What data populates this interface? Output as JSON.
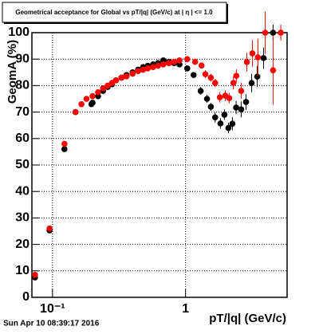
{
  "chart_data": {
    "type": "scatter",
    "title": "Geometrical acceptance for Global vs pT/|q| (GeV/c) at | η | <= 1.0",
    "x_label": "pT/|q| (GeV/c)",
    "y_label": "GeomA (%)",
    "footer": "Sun Apr 10 08:39:17 2016",
    "xlim": [
      0.07,
      5.8
    ],
    "ylim": [
      0,
      100
    ],
    "log_x": true,
    "grid": true,
    "xticks": [
      {
        "value": 0.1,
        "label": "10⁻¹"
      },
      1
    ],
    "yticks": [
      0,
      10,
      20,
      30,
      40,
      50,
      60,
      70,
      80,
      90,
      100
    ],
    "series": [
      {
        "name": "Global (black)",
        "color": "#000000",
        "x": [
          0.0738,
          0.095,
          0.123,
          0.149,
          0.196,
          0.2,
          0.22,
          0.24,
          0.26,
          0.28,
          0.3,
          0.33,
          0.36,
          0.4,
          0.44,
          0.48,
          0.52,
          0.57,
          0.62,
          0.68,
          0.75,
          0.82,
          0.9,
          1.03,
          1.15,
          1.3,
          1.45,
          1.55,
          1.67,
          1.83,
          1.96,
          2.1,
          2.25,
          2.4,
          2.62,
          2.85,
          3.14,
          3.46,
          3.86,
          4.55
        ],
        "values": [
          7.5,
          25.3,
          56,
          70,
          73,
          73.5,
          76,
          78,
          79.5,
          80.5,
          82,
          83,
          84,
          85,
          86,
          87,
          87.5,
          88,
          88.5,
          89.5,
          89,
          88.5,
          88,
          86.5,
          84,
          78,
          75,
          72,
          68,
          65.7,
          69,
          64,
          65.6,
          71.7,
          71,
          73.8,
          81,
          83.4,
          90.4,
          100
        ],
        "errors": [
          1,
          1,
          1,
          1,
          1,
          1,
          1,
          1,
          1,
          1,
          1,
          1,
          1,
          1,
          1,
          1,
          1,
          1,
          1,
          1,
          1,
          1,
          1,
          1,
          1,
          1.5,
          1.5,
          1.5,
          2,
          2,
          2,
          2,
          2.5,
          2.5,
          3,
          3,
          3.5,
          4,
          4,
          3
        ]
      },
      {
        "name": "Global (red)",
        "color": "#ff0000",
        "x": [
          0.0738,
          0.095,
          0.123,
          0.149,
          0.165,
          0.18,
          0.2,
          0.22,
          0.24,
          0.26,
          0.28,
          0.3,
          0.33,
          0.36,
          0.4,
          0.44,
          0.48,
          0.52,
          0.57,
          0.62,
          0.68,
          0.75,
          0.82,
          0.9,
          1.03,
          1.18,
          1.32,
          1.41,
          1.55,
          1.67,
          1.81,
          1.99,
          2.13,
          2.29,
          2.41,
          2.62,
          2.89,
          3.18,
          3.5,
          3.97,
          4.55,
          5.2
        ],
        "values": [
          8.5,
          26,
          58,
          70,
          73,
          75,
          76,
          77.5,
          79,
          80,
          81,
          82,
          83,
          83.5,
          84.5,
          85.5,
          86,
          86.5,
          87,
          87.5,
          88,
          88.5,
          89,
          89.5,
          90,
          89,
          87.6,
          84.3,
          83,
          81,
          75.6,
          76.2,
          75.3,
          81,
          83.7,
          78,
          88.9,
          92.2,
          90.7,
          100,
          85.8,
          100
        ],
        "errors": [
          1,
          1,
          1,
          1,
          1,
          1,
          1,
          1,
          1,
          1,
          1,
          1,
          1,
          1,
          1,
          1,
          1,
          1,
          1,
          1,
          1,
          1,
          1,
          1,
          1,
          1,
          1,
          1.5,
          1.5,
          1.5,
          2,
          2,
          2,
          2.5,
          2.5,
          3,
          3.5,
          5,
          7,
          8,
          13,
          3
        ]
      }
    ]
  }
}
